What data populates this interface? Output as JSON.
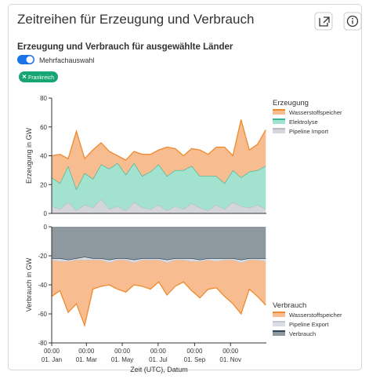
{
  "header": {
    "title": "Zeitreihen für Erzeugung und Verbrauch",
    "subtitle": "Erzeugung und Verbrauch für ausgewählte Länder",
    "toggle_label": "Mehrfachauswahl",
    "chip": "Frankreich"
  },
  "chart_data": [
    {
      "type": "stacked-area",
      "ylabel": "Erzeugung in GW",
      "legend_title": "Erzeugung",
      "legend": "right",
      "x": [
        0,
        14,
        28,
        42,
        56,
        70,
        84,
        98,
        112,
        126,
        140,
        154,
        168,
        182,
        196,
        210,
        224,
        238,
        252,
        266,
        280,
        294,
        308,
        322,
        336,
        350,
        364
      ],
      "xlim": [
        0,
        365
      ],
      "ylim": [
        0,
        80
      ],
      "yticks": [
        0,
        20,
        40,
        60,
        80
      ],
      "series": [
        {
          "name": "Pipeline Import",
          "color": "#b9bcc6",
          "fill": "#d4d6dc",
          "values": [
            5,
            3,
            8,
            2,
            6,
            4,
            10,
            3,
            5,
            2,
            8,
            4,
            3,
            6,
            2,
            5,
            3,
            7,
            4,
            2,
            6,
            3,
            8,
            5,
            4,
            6,
            3
          ]
        },
        {
          "name": "Elektrolyse",
          "color": "#3cb596",
          "fill": "#a3e2cf",
          "values": [
            20,
            18,
            25,
            15,
            22,
            20,
            24,
            28,
            30,
            25,
            27,
            22,
            26,
            28,
            24,
            25,
            27,
            26,
            22,
            24,
            20,
            18,
            22,
            20,
            25,
            24,
            30
          ]
        },
        {
          "name": "Wasserstoffspeicher",
          "color": "#ef8a2e",
          "fill": "#f7bd90",
          "values": [
            15,
            20,
            5,
            40,
            10,
            20,
            15,
            12,
            5,
            10,
            8,
            15,
            12,
            10,
            20,
            15,
            10,
            12,
            18,
            15,
            20,
            25,
            10,
            40,
            15,
            18,
            25
          ]
        }
      ]
    },
    {
      "type": "stacked-area",
      "ylabel": "Verbrauch in GW",
      "xlabel": "Zeit (UTC), Datum",
      "legend_title": "Verbrauch",
      "legend": "right",
      "x": [
        0,
        14,
        28,
        42,
        56,
        70,
        84,
        98,
        112,
        126,
        140,
        154,
        168,
        182,
        196,
        210,
        224,
        238,
        252,
        266,
        280,
        294,
        308,
        322,
        336,
        350,
        364
      ],
      "xlim": [
        0,
        365
      ],
      "ylim": [
        -80,
        0
      ],
      "yticks": [
        -80,
        -60,
        -40,
        -20,
        0
      ],
      "xticks": [
        {
          "value": 0,
          "label": "00:00",
          "sublabel": "01. Jan"
        },
        {
          "value": 59,
          "label": "00:00",
          "sublabel": "01. Mar"
        },
        {
          "value": 120,
          "label": "00:00",
          "sublabel": "01. May"
        },
        {
          "value": 181,
          "label": "00:00",
          "sublabel": "01. Jul"
        },
        {
          "value": 243,
          "label": "00:00",
          "sublabel": "01. Sep"
        },
        {
          "value": 304,
          "label": "00:00",
          "sublabel": "01. Nov"
        }
      ],
      "series": [
        {
          "name": "Verbrauch",
          "color": "#2f4457",
          "fill": "#8d989f",
          "values": [
            -22,
            -22,
            -23,
            -22,
            -21,
            -22,
            -22,
            -23,
            -22,
            -22,
            -23,
            -22,
            -22,
            -22,
            -23,
            -22,
            -22,
            -22,
            -23,
            -22,
            -22,
            -22,
            -22,
            -23,
            -22,
            -22,
            -22
          ]
        },
        {
          "name": "Pipeline Export",
          "color": "#c3c7cf",
          "fill": "#d9dce2",
          "values": [
            -1,
            -2,
            -1,
            -1,
            -2,
            -1,
            -1,
            -2,
            -1,
            -1,
            -2,
            -1,
            -1,
            -1,
            -2,
            -1,
            -1,
            -2,
            -1,
            -1,
            -2,
            -1,
            -1,
            -2,
            -1,
            -1,
            -2
          ]
        },
        {
          "name": "Wasserstoffspeicher",
          "color": "#ef8a2e",
          "fill": "#f7bd90",
          "values": [
            -25,
            -20,
            -35,
            -30,
            -45,
            -20,
            -18,
            -15,
            -20,
            -22,
            -15,
            -18,
            -20,
            -15,
            -22,
            -18,
            -15,
            -20,
            -25,
            -20,
            -18,
            -25,
            -30,
            -35,
            -20,
            -25,
            -30
          ]
        }
      ]
    }
  ]
}
